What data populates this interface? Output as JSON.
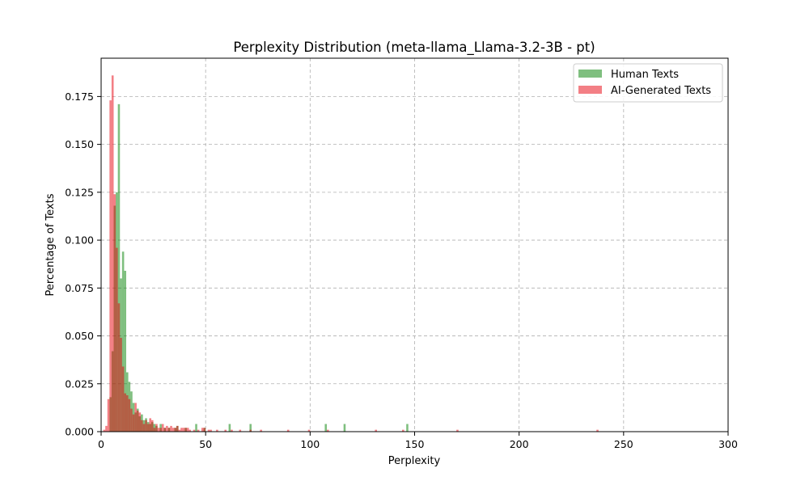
{
  "chart_data": {
    "type": "bar",
    "title": "Perplexity Distribution (meta-llama_Llama-3.2-3B - pt)",
    "xlabel": "Perplexity",
    "ylabel": "Percentage of Texts",
    "xlim": [
      0,
      300
    ],
    "ylim": [
      0,
      0.195
    ],
    "xticks": [
      0,
      50,
      100,
      150,
      200,
      250,
      300
    ],
    "xtick_labels": [
      "0",
      "50",
      "100",
      "150",
      "200",
      "250",
      "300"
    ],
    "yticks": [
      0,
      0.025,
      0.05,
      0.075,
      0.1,
      0.125,
      0.15,
      0.175
    ],
    "ytick_labels": [
      "0.000",
      "0.025",
      "0.050",
      "0.075",
      "0.100",
      "0.125",
      "0.150",
      "0.175"
    ],
    "grid": true,
    "legend_position": "top-right",
    "bin_width": 1,
    "series": [
      {
        "name": "Human Texts",
        "color": "#008000",
        "opacity": 0.5,
        "points": [
          [
            4,
            0.018
          ],
          [
            5,
            0.042
          ],
          [
            6,
            0.118
          ],
          [
            7,
            0.125
          ],
          [
            8,
            0.171
          ],
          [
            9,
            0.08
          ],
          [
            10,
            0.094
          ],
          [
            11,
            0.084
          ],
          [
            12,
            0.031
          ],
          [
            13,
            0.026
          ],
          [
            14,
            0.021
          ],
          [
            15,
            0.015
          ],
          [
            16,
            0.01
          ],
          [
            17,
            0.012
          ],
          [
            18,
            0.008
          ],
          [
            19,
            0.009
          ],
          [
            20,
            0.006
          ],
          [
            21,
            0.007
          ],
          [
            22,
            0.005
          ],
          [
            23,
            0.004
          ],
          [
            24,
            0.005
          ],
          [
            25,
            0.004
          ],
          [
            26,
            0.003
          ],
          [
            28,
            0.004
          ],
          [
            30,
            0.002
          ],
          [
            32,
            0.002
          ],
          [
            35,
            0.002
          ],
          [
            36,
            0.003
          ],
          [
            40,
            0.002
          ],
          [
            45,
            0.004
          ],
          [
            49,
            0.002
          ],
          [
            61,
            0.004
          ],
          [
            71,
            0.004
          ],
          [
            107,
            0.004
          ],
          [
            116,
            0.004
          ],
          [
            146,
            0.004
          ]
        ]
      },
      {
        "name": "AI-Generated Texts",
        "color": "#e8000b",
        "opacity": 0.5,
        "points": [
          [
            1,
            0.001
          ],
          [
            2,
            0.003
          ],
          [
            3,
            0.017
          ],
          [
            4,
            0.173
          ],
          [
            5,
            0.186
          ],
          [
            6,
            0.124
          ],
          [
            7,
            0.096
          ],
          [
            8,
            0.067
          ],
          [
            9,
            0.049
          ],
          [
            10,
            0.034
          ],
          [
            11,
            0.02
          ],
          [
            12,
            0.019
          ],
          [
            13,
            0.017
          ],
          [
            14,
            0.012
          ],
          [
            15,
            0.009
          ],
          [
            16,
            0.015
          ],
          [
            17,
            0.011
          ],
          [
            18,
            0.01
          ],
          [
            19,
            0.006
          ],
          [
            20,
            0.004
          ],
          [
            21,
            0.006
          ],
          [
            22,
            0.004
          ],
          [
            23,
            0.007
          ],
          [
            24,
            0.006
          ],
          [
            25,
            0.002
          ],
          [
            26,
            0.004
          ],
          [
            27,
            0.002
          ],
          [
            28,
            0.002
          ],
          [
            29,
            0.004
          ],
          [
            30,
            0.002
          ],
          [
            31,
            0.003
          ],
          [
            32,
            0.002
          ],
          [
            33,
            0.003
          ],
          [
            34,
            0.002
          ],
          [
            35,
            0.002
          ],
          [
            36,
            0.003
          ],
          [
            37,
            0.001
          ],
          [
            38,
            0.002
          ],
          [
            39,
            0.002
          ],
          [
            40,
            0.002
          ],
          [
            41,
            0.002
          ],
          [
            42,
            0.001
          ],
          [
            44,
            0.001
          ],
          [
            46,
            0.001
          ],
          [
            48,
            0.002
          ],
          [
            49,
            0.002
          ],
          [
            51,
            0.001
          ],
          [
            52,
            0.001
          ],
          [
            55,
            0.001
          ],
          [
            59,
            0.001
          ],
          [
            62,
            0.001
          ],
          [
            66,
            0.001
          ],
          [
            71,
            0.001
          ],
          [
            76,
            0.001
          ],
          [
            89,
            0.001
          ],
          [
            99,
            0.001
          ],
          [
            108,
            0.001
          ],
          [
            131,
            0.001
          ],
          [
            144,
            0.001
          ],
          [
            170,
            0.001
          ],
          [
            237,
            0.001
          ]
        ]
      }
    ]
  }
}
